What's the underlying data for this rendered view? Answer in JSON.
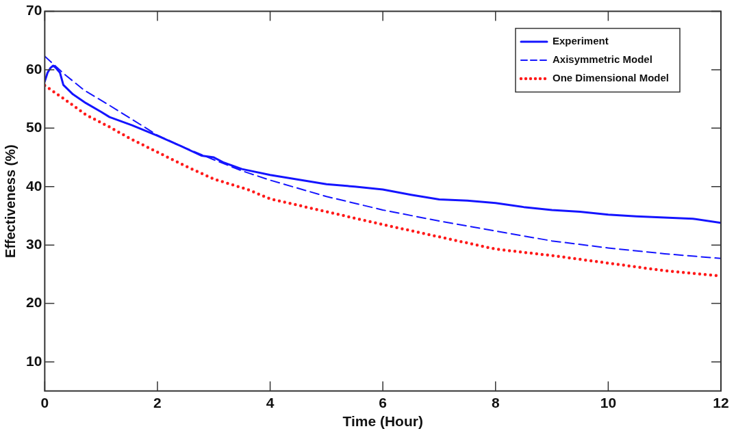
{
  "chart_data": {
    "type": "line",
    "xlabel": "Time (Hour)",
    "ylabel": "Effectiveness (%)",
    "xlim": [
      0,
      12
    ],
    "ylim": [
      5,
      70
    ],
    "xticks": [
      0,
      2,
      4,
      6,
      8,
      10,
      12
    ],
    "yticks": [
      10,
      20,
      30,
      40,
      50,
      60,
      70
    ],
    "legend": "top right",
    "marker": "none",
    "series": [
      {
        "name": "Experiment",
        "color": "#1414ff",
        "line_style": "solid",
        "x": [
          0,
          0.05,
          0.1,
          0.15,
          0.2,
          0.27,
          0.33,
          0.5,
          0.73,
          1,
          1.15,
          1.55,
          2,
          2.4,
          2.78,
          3,
          3.18,
          3.5,
          4,
          4.5,
          5,
          5.5,
          6,
          6.5,
          7,
          7.5,
          8,
          8.5,
          9,
          9.5,
          10,
          10.5,
          11,
          11.5,
          12
        ],
        "values": [
          58,
          59.5,
          60.3,
          60.7,
          60.3,
          59.5,
          57.4,
          55.8,
          54.3,
          52.8,
          51.9,
          50.5,
          48.7,
          47,
          45.3,
          45,
          44.1,
          43,
          42,
          41.2,
          40.4,
          40,
          39.5,
          38.6,
          37.8,
          37.6,
          37.2,
          36.5,
          36,
          35.7,
          35.2,
          34.9,
          34.7,
          34.5,
          33.8
        ]
      },
      {
        "name": "Axisymmetric Model",
        "color": "#1414ff",
        "line_style": "dashed",
        "x": [
          0,
          0.33,
          0.7,
          1.15,
          1.5,
          2,
          2.5,
          3,
          3.5,
          4,
          5,
          6,
          7,
          8,
          9,
          10,
          11,
          12
        ],
        "values": [
          62.3,
          59.4,
          56.5,
          53.9,
          51.8,
          48.8,
          46.6,
          44.6,
          42.7,
          41.1,
          38.3,
          36,
          34.1,
          32.4,
          30.7,
          29.5,
          28.5,
          27.7
        ]
      },
      {
        "name": "One Dimensional Model",
        "color": "#ff1a1a",
        "line_style": "dotted",
        "x": [
          0,
          0.33,
          0.73,
          1.15,
          1.5,
          2,
          2.5,
          3,
          3.6,
          4,
          5,
          6,
          7,
          8,
          9,
          10,
          11,
          12
        ],
        "values": [
          57.3,
          55.1,
          52.3,
          50.2,
          48.3,
          45.9,
          43.5,
          41.3,
          39.5,
          37.9,
          35.7,
          33.5,
          31.4,
          29.3,
          28.2,
          26.9,
          25.6,
          24.7
        ]
      }
    ]
  }
}
